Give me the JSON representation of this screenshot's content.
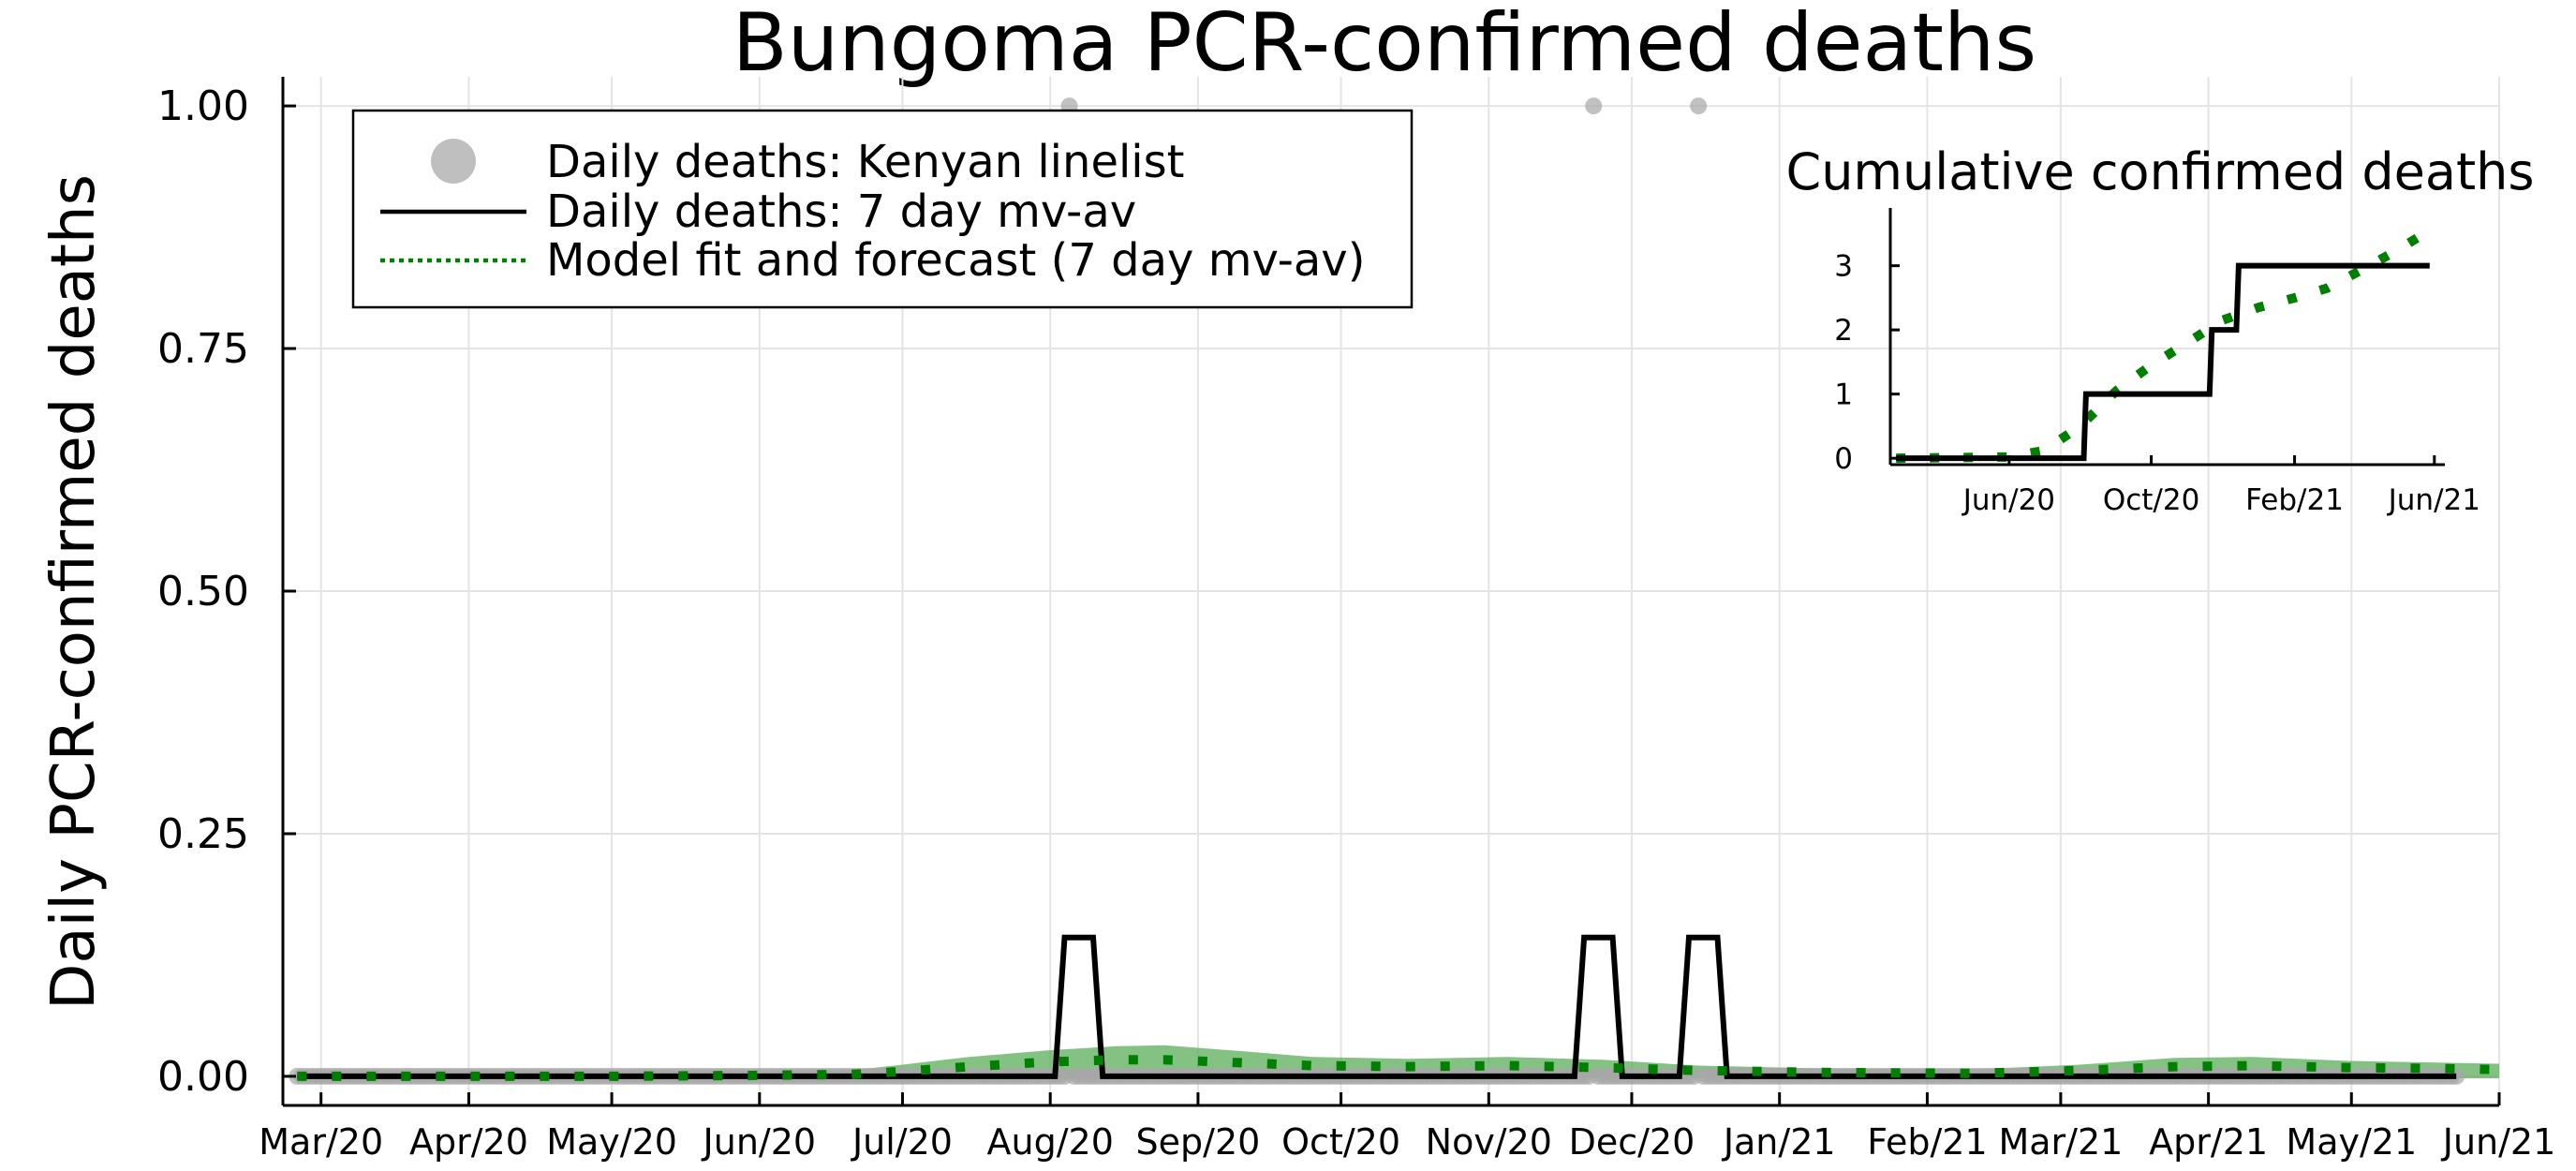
{
  "chart_data": [
    {
      "type": "line",
      "title": "Bungoma PCR-confirmed deaths",
      "xlabel": "",
      "ylabel": "Daily PCR-confirmed deaths",
      "xlim": [
        "2020-02-22",
        "2021-06-01"
      ],
      "ylim": [
        -0.03,
        1.03
      ],
      "grid": true,
      "legend_position": "top-left",
      "x_ticks": [
        {
          "date": "2020-03-01",
          "label": "Mar/20"
        },
        {
          "date": "2020-04-01",
          "label": "Apr/20"
        },
        {
          "date": "2020-05-01",
          "label": "May/20"
        },
        {
          "date": "2020-06-01",
          "label": "Jun/20"
        },
        {
          "date": "2020-07-01",
          "label": "Jul/20"
        },
        {
          "date": "2020-08-01",
          "label": "Aug/20"
        },
        {
          "date": "2020-09-01",
          "label": "Sep/20"
        },
        {
          "date": "2020-10-01",
          "label": "Oct/20"
        },
        {
          "date": "2020-11-01",
          "label": "Nov/20"
        },
        {
          "date": "2020-12-01",
          "label": "Dec/20"
        },
        {
          "date": "2021-01-01",
          "label": "Jan/21"
        },
        {
          "date": "2021-02-01",
          "label": "Feb/21"
        },
        {
          "date": "2021-03-01",
          "label": "Mar/21"
        },
        {
          "date": "2021-04-01",
          "label": "Apr/21"
        },
        {
          "date": "2021-05-01",
          "label": "May/21"
        },
        {
          "date": "2021-06-01",
          "label": "Jun/21"
        }
      ],
      "y_ticks": [
        {
          "value": 0,
          "label": "0.00"
        },
        {
          "value": 0.25,
          "label": "0.25"
        },
        {
          "value": 0.5,
          "label": "0.50"
        },
        {
          "value": 0.75,
          "label": "0.75"
        },
        {
          "value": 1,
          "label": "1.00"
        }
      ],
      "series": [
        {
          "name": "Daily deaths: Kenyan linelist",
          "kind": "scatter",
          "color": "#a6a6a6",
          "zero_range": [
            "2020-02-25",
            "2021-05-23"
          ],
          "nonzero_points": [
            {
              "x": "2020-08-05",
              "y": 1
            },
            {
              "x": "2020-11-23",
              "y": 1
            },
            {
              "x": "2020-12-15",
              "y": 1
            }
          ]
        },
        {
          "name": "Daily deaths: 7 day mv-av",
          "kind": "line",
          "color": "#000000",
          "points": [
            {
              "x": "2020-02-25",
              "y": 0
            },
            {
              "x": "2020-08-02",
              "y": 0
            },
            {
              "x": "2020-08-04",
              "y": 0.143
            },
            {
              "x": "2020-08-10",
              "y": 0.143
            },
            {
              "x": "2020-08-12",
              "y": 0
            },
            {
              "x": "2020-11-19",
              "y": 0
            },
            {
              "x": "2020-11-21",
              "y": 0.143
            },
            {
              "x": "2020-11-27",
              "y": 0.143
            },
            {
              "x": "2020-11-29",
              "y": 0
            },
            {
              "x": "2020-12-11",
              "y": 0
            },
            {
              "x": "2020-12-13",
              "y": 0.143
            },
            {
              "x": "2020-12-19",
              "y": 0.143
            },
            {
              "x": "2020-12-21",
              "y": 0
            },
            {
              "x": "2021-05-23",
              "y": 0
            }
          ]
        },
        {
          "name": "Model fit and forecast (7 day mv-av)",
          "kind": "dotted_line",
          "color": "#007f00",
          "band_color": "#5aae5a",
          "points": [
            {
              "x": "2020-02-25",
              "y": 0,
              "lo": -0.002,
              "hi": 0.002
            },
            {
              "x": "2020-05-01",
              "y": 0,
              "lo": -0.002,
              "hi": 0.002
            },
            {
              "x": "2020-06-01",
              "y": 0.001,
              "lo": -0.002,
              "hi": 0.003
            },
            {
              "x": "2020-06-20",
              "y": 0.002,
              "lo": -0.002,
              "hi": 0.006
            },
            {
              "x": "2020-07-01",
              "y": 0.005,
              "lo": -0.003,
              "hi": 0.012
            },
            {
              "x": "2020-07-15",
              "y": 0.01,
              "lo": -0.003,
              "hi": 0.02
            },
            {
              "x": "2020-08-01",
              "y": 0.015,
              "lo": -0.003,
              "hi": 0.027
            },
            {
              "x": "2020-08-15",
              "y": 0.017,
              "lo": -0.003,
              "hi": 0.031
            },
            {
              "x": "2020-08-25",
              "y": 0.017,
              "lo": -0.003,
              "hi": 0.032
            },
            {
              "x": "2020-09-10",
              "y": 0.014,
              "lo": -0.002,
              "hi": 0.026
            },
            {
              "x": "2020-09-25",
              "y": 0.011,
              "lo": -0.002,
              "hi": 0.02
            },
            {
              "x": "2020-10-15",
              "y": 0.01,
              "lo": -0.002,
              "hi": 0.018
            },
            {
              "x": "2020-11-05",
              "y": 0.011,
              "lo": -0.002,
              "hi": 0.02
            },
            {
              "x": "2020-11-25",
              "y": 0.009,
              "lo": -0.002,
              "hi": 0.017
            },
            {
              "x": "2020-12-15",
              "y": 0.006,
              "lo": -0.002,
              "hi": 0.011
            },
            {
              "x": "2021-01-10",
              "y": 0.004,
              "lo": -0.002,
              "hi": 0.008
            },
            {
              "x": "2021-02-10",
              "y": 0.003,
              "lo": -0.002,
              "hi": 0.007
            },
            {
              "x": "2021-03-05",
              "y": 0.006,
              "lo": -0.002,
              "hi": 0.012
            },
            {
              "x": "2021-03-25",
              "y": 0.01,
              "lo": -0.002,
              "hi": 0.019
            },
            {
              "x": "2021-04-10",
              "y": 0.011,
              "lo": -0.002,
              "hi": 0.02
            },
            {
              "x": "2021-04-30",
              "y": 0.009,
              "lo": -0.002,
              "hi": 0.016
            },
            {
              "x": "2021-05-20",
              "y": 0.008,
              "lo": -0.002,
              "hi": 0.014
            },
            {
              "x": "2021-06-01",
              "y": 0.007,
              "lo": -0.002,
              "hi": 0.013
            }
          ]
        }
      ]
    },
    {
      "type": "line",
      "title": "Cumulative confirmed deaths",
      "xlabel": "",
      "ylabel": "",
      "xlim": [
        "2020-02-20",
        "2021-06-10"
      ],
      "ylim": [
        -0.1,
        3.9
      ],
      "grid": false,
      "x_ticks": [
        {
          "date": "2020-06-01",
          "label": "Jun/20"
        },
        {
          "date": "2020-10-01",
          "label": "Oct/20"
        },
        {
          "date": "2021-02-01",
          "label": "Feb/21"
        },
        {
          "date": "2021-06-01",
          "label": "Jun/21"
        }
      ],
      "y_ticks": [
        {
          "value": 0,
          "label": "0"
        },
        {
          "value": 1,
          "label": "1"
        },
        {
          "value": 2,
          "label": "2"
        },
        {
          "value": 3,
          "label": "3"
        }
      ],
      "series": [
        {
          "kind": "step_line",
          "color": "#000000",
          "points": [
            {
              "x": "2020-02-25",
              "y": 0
            },
            {
              "x": "2020-08-04",
              "y": 0
            },
            {
              "x": "2020-08-06",
              "y": 1
            },
            {
              "x": "2020-11-20",
              "y": 1
            },
            {
              "x": "2020-11-22",
              "y": 2
            },
            {
              "x": "2020-12-13",
              "y": 2
            },
            {
              "x": "2020-12-15",
              "y": 3
            },
            {
              "x": "2021-05-28",
              "y": 3
            }
          ]
        },
        {
          "kind": "dotted_line",
          "color": "#007f00",
          "points": [
            {
              "x": "2020-02-25",
              "y": 0
            },
            {
              "x": "2020-06-01",
              "y": 0.02
            },
            {
              "x": "2020-07-01",
              "y": 0.12
            },
            {
              "x": "2020-08-01",
              "y": 0.5
            },
            {
              "x": "2020-09-01",
              "y": 1.05
            },
            {
              "x": "2020-10-01",
              "y": 1.45
            },
            {
              "x": "2020-11-01",
              "y": 1.8
            },
            {
              "x": "2020-12-01",
              "y": 2.15
            },
            {
              "x": "2021-01-01",
              "y": 2.35
            },
            {
              "x": "2021-02-01",
              "y": 2.5
            },
            {
              "x": "2021-03-01",
              "y": 2.65
            },
            {
              "x": "2021-04-01",
              "y": 2.95
            },
            {
              "x": "2021-05-01",
              "y": 3.25
            },
            {
              "x": "2021-06-01",
              "y": 3.6
            }
          ]
        }
      ]
    }
  ]
}
